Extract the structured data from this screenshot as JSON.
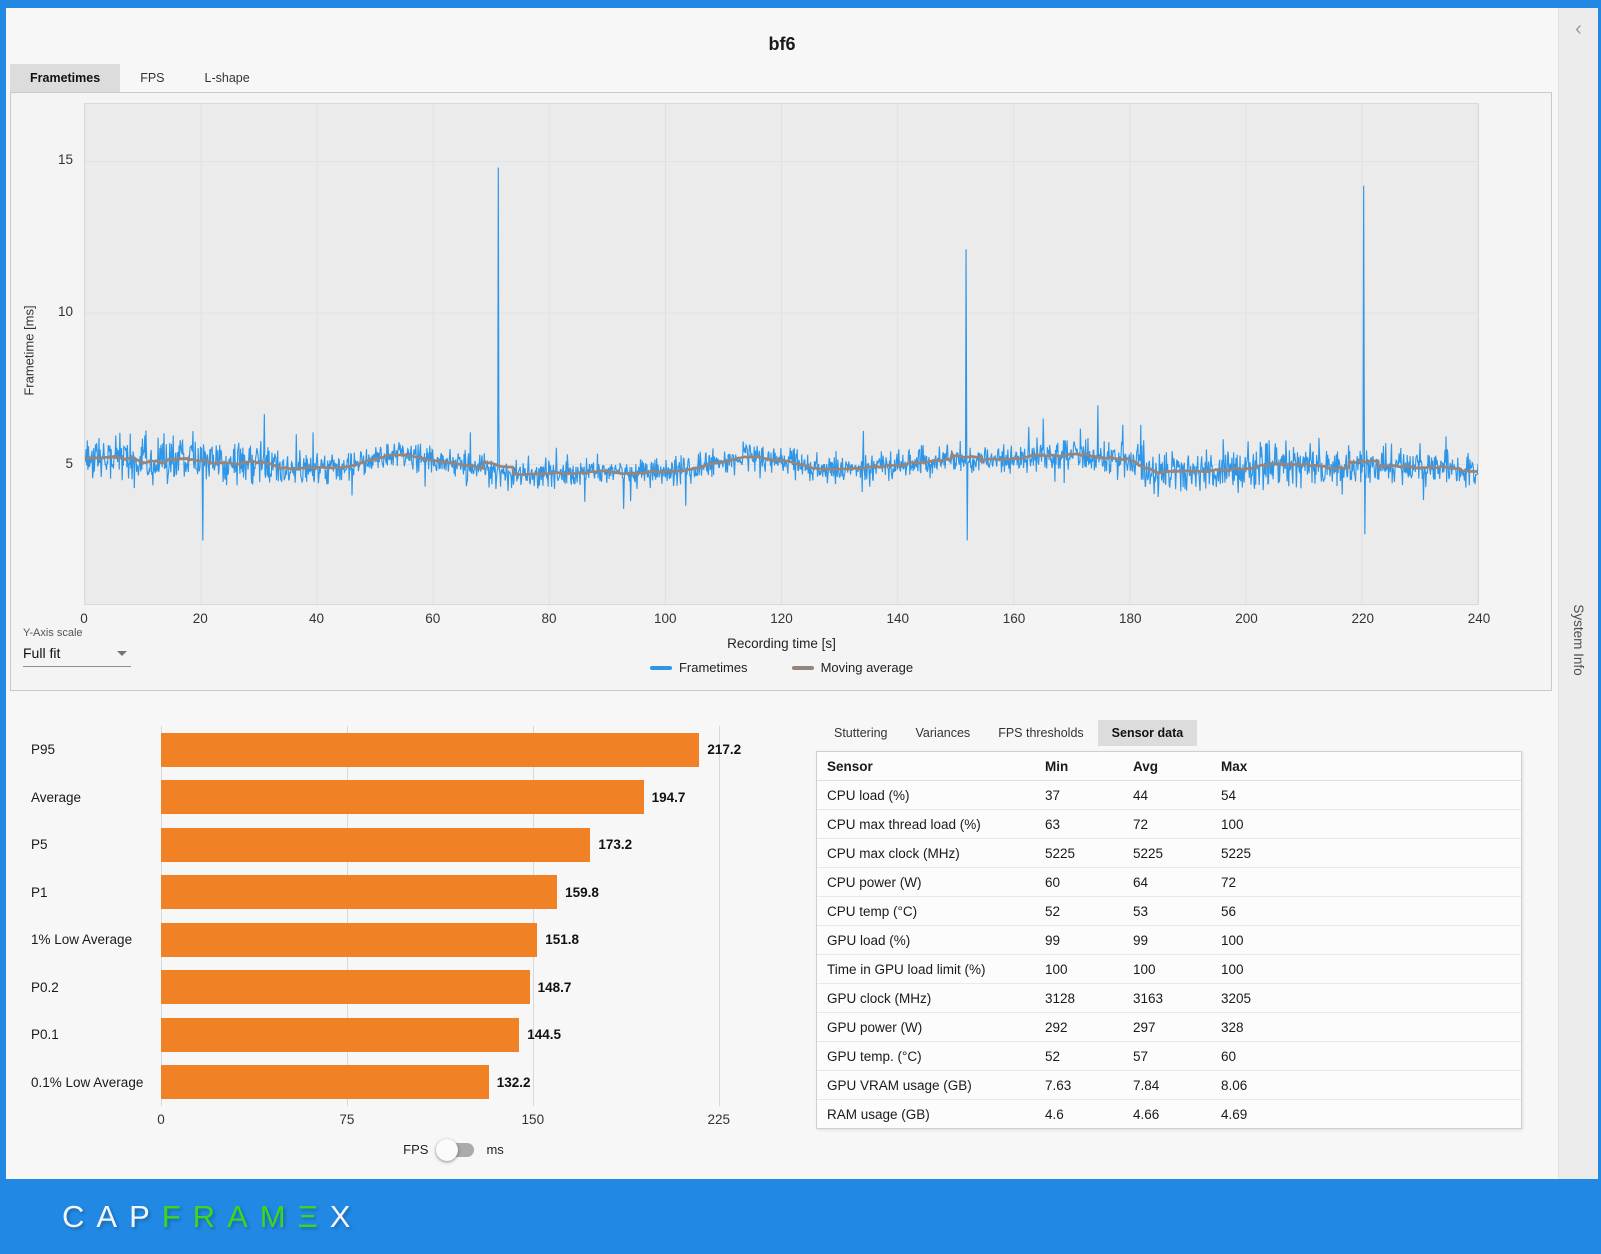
{
  "window": {
    "title": "bf6"
  },
  "tabs": [
    {
      "label": "Frametimes",
      "selected": true
    },
    {
      "label": "FPS",
      "selected": false
    },
    {
      "label": "L-shape",
      "selected": false
    }
  ],
  "chart_data": [
    {
      "type": "line",
      "title": "bf6 frametimes over recording time",
      "xlabel": "Recording time [s]",
      "ylabel": "Frametime [ms]",
      "xlim": [
        0,
        240
      ],
      "ylim": [
        0.4,
        16.9
      ],
      "x_ticks": [
        0,
        20,
        40,
        60,
        80,
        100,
        120,
        140,
        160,
        180,
        200,
        220,
        240
      ],
      "y_ticks": [
        5,
        10,
        15
      ],
      "grid": true,
      "legend_position": "bottom",
      "series": [
        {
          "name": "Frametimes",
          "color": "#2E96E8",
          "kind": "noisy-line",
          "baseline_mean_ms": 5.1,
          "typical_band_ms": [
            4.0,
            7.4
          ],
          "spikes": [
            {
              "x": 71.2,
              "y": 14.8
            },
            {
              "x": 151.8,
              "y": 12.1
            },
            {
              "x": 220.3,
              "y": 14.2
            }
          ],
          "dips": [
            {
              "x": 20.2,
              "y": 2.5
            },
            {
              "x": 151.9,
              "y": 2.5
            },
            {
              "x": 220.4,
              "y": 2.7
            }
          ]
        },
        {
          "name": "Moving average",
          "color": "#95857C",
          "kind": "moving-average",
          "approx_value_range_ms": [
            4.9,
            5.6
          ]
        }
      ],
      "synth": {
        "seed": 1337,
        "dt": 0.1,
        "window": 25
      }
    },
    {
      "type": "bar",
      "orientation": "horizontal",
      "categories": [
        "P95",
        "Average",
        "P5",
        "P1",
        "1% Low Average",
        "P0.2",
        "P0.1",
        "0.1% Low Average"
      ],
      "values": [
        217.2,
        194.7,
        173.2,
        159.8,
        151.8,
        148.7,
        144.5,
        132.2
      ],
      "value_unit": "FPS",
      "x_ticks": [
        0,
        75,
        150,
        225
      ],
      "xlim": [
        0,
        236
      ],
      "bar_color": "#F08124"
    }
  ],
  "y_axis_scale": {
    "label": "Y-Axis scale",
    "value": "Full fit"
  },
  "unit_toggle": {
    "left": "FPS",
    "right": "ms",
    "selected": "FPS"
  },
  "analysis_tabs": [
    {
      "label": "Stuttering",
      "selected": false
    },
    {
      "label": "Variances",
      "selected": false
    },
    {
      "label": "FPS thresholds",
      "selected": false
    },
    {
      "label": "Sensor data",
      "selected": true
    }
  ],
  "sensor_table": {
    "headers": [
      "Sensor",
      "Min",
      "Avg",
      "Max"
    ],
    "rows": [
      [
        "CPU load (%)",
        "37",
        "44",
        "54"
      ],
      [
        "CPU max thread load (%)",
        "63",
        "72",
        "100"
      ],
      [
        "CPU max clock (MHz)",
        "5225",
        "5225",
        "5225"
      ],
      [
        "CPU power (W)",
        "60",
        "64",
        "72"
      ],
      [
        "CPU temp (°C)",
        "52",
        "53",
        "56"
      ],
      [
        "GPU load (%)",
        "99",
        "99",
        "100"
      ],
      [
        "Time in GPU load limit (%)",
        "100",
        "100",
        "100"
      ],
      [
        "GPU clock (MHz)",
        "3128",
        "3163",
        "3205"
      ],
      [
        "GPU power (W)",
        "292",
        "297",
        "328"
      ],
      [
        "GPU temp. (°C)",
        "52",
        "57",
        "60"
      ],
      [
        "GPU VRAM usage (GB)",
        "7.63",
        "7.84",
        "8.06"
      ],
      [
        "RAM usage (GB)",
        "4.6",
        "4.66",
        "4.69"
      ]
    ]
  },
  "side_rail": {
    "collapse_icon": "‹",
    "label": "System Info"
  },
  "footer": {
    "logo_segments": [
      {
        "text": "CAP",
        "color": "#F4F7F9"
      },
      {
        "text": "FRAM",
        "color": "#3BD71E"
      },
      {
        "text": "Ξ",
        "color": "#3BD71E"
      },
      {
        "text": "X",
        "color": "#F4F7F9"
      }
    ]
  },
  "colors": {
    "accent_blue": "#2189E4",
    "chart_blue": "#2E96E8",
    "bar_orange": "#F08124",
    "moving_average": "#95857C",
    "plot_background": "#EBEBEB"
  }
}
